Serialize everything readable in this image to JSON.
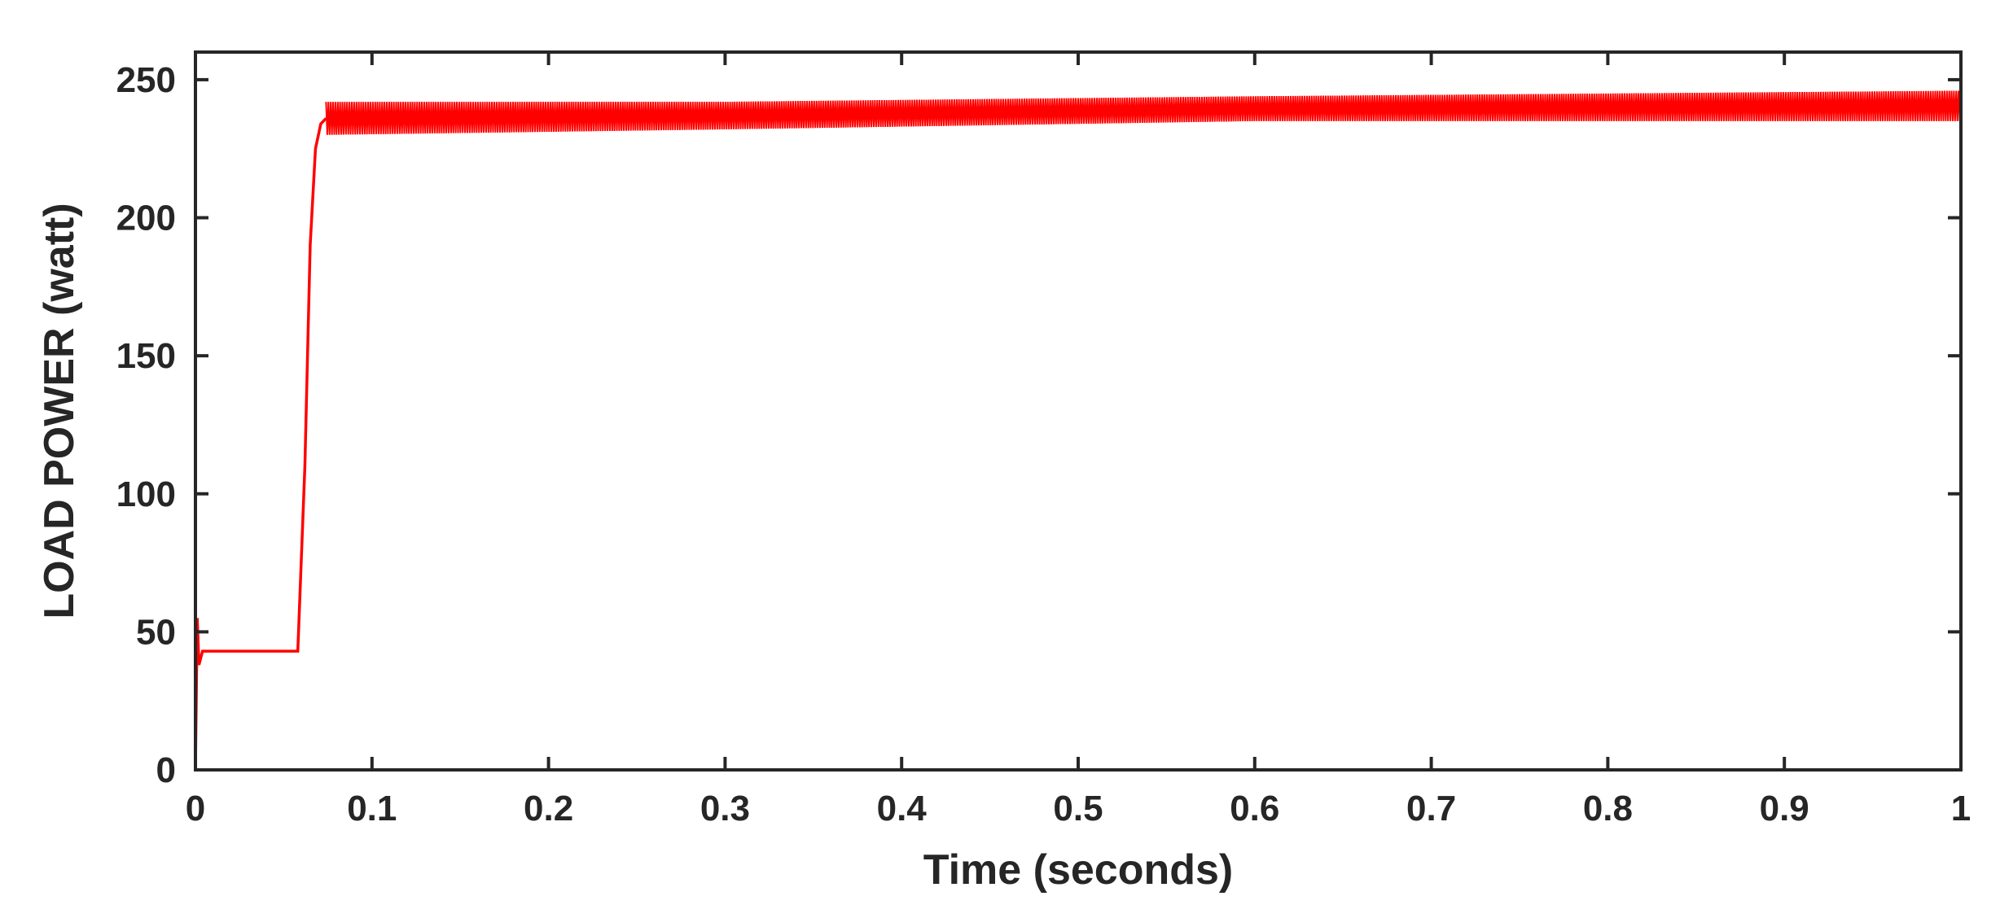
{
  "chart_data": {
    "type": "line",
    "title": "",
    "xlabel": "Time (seconds)",
    "ylabel": "LOAD POWER (watt)",
    "xlim": [
      0,
      1
    ],
    "ylim": [
      0,
      260
    ],
    "xticks": [
      0,
      0.1,
      0.2,
      0.3,
      0.4,
      0.5,
      0.6,
      0.7,
      0.8,
      0.9,
      1
    ],
    "xtick_labels": [
      "0",
      "0.1",
      "0.2",
      "0.3",
      "0.4",
      "0.5",
      "0.6",
      "0.7",
      "0.8",
      "0.9",
      "1"
    ],
    "yticks": [
      0,
      50,
      100,
      150,
      200,
      250
    ],
    "ytick_labels": [
      "0",
      "50",
      "100",
      "150",
      "200",
      "250"
    ],
    "grid": false,
    "box": true,
    "series": [
      {
        "color": "#ff0000",
        "x": [
          0,
          0.001,
          0.002,
          0.004,
          0.058,
          0.062,
          0.065,
          0.068,
          0.071,
          0.074,
          0.1,
          0.2,
          0.3,
          0.4,
          0.5,
          0.6,
          0.7,
          0.8,
          0.9,
          1.0
        ],
        "y": [
          0,
          55,
          38,
          43,
          43,
          110,
          190,
          225,
          234,
          236,
          236,
          236,
          237,
          238,
          239,
          240,
          240,
          240,
          240,
          240
        ],
        "ripple_band": {
          "start_x": 0.074,
          "x": [
            0.074,
            0.3,
            0.6,
            1.0
          ],
          "upper": [
            242,
            242,
            244,
            246
          ],
          "lower": [
            230,
            232,
            235,
            235
          ]
        }
      }
    ]
  }
}
